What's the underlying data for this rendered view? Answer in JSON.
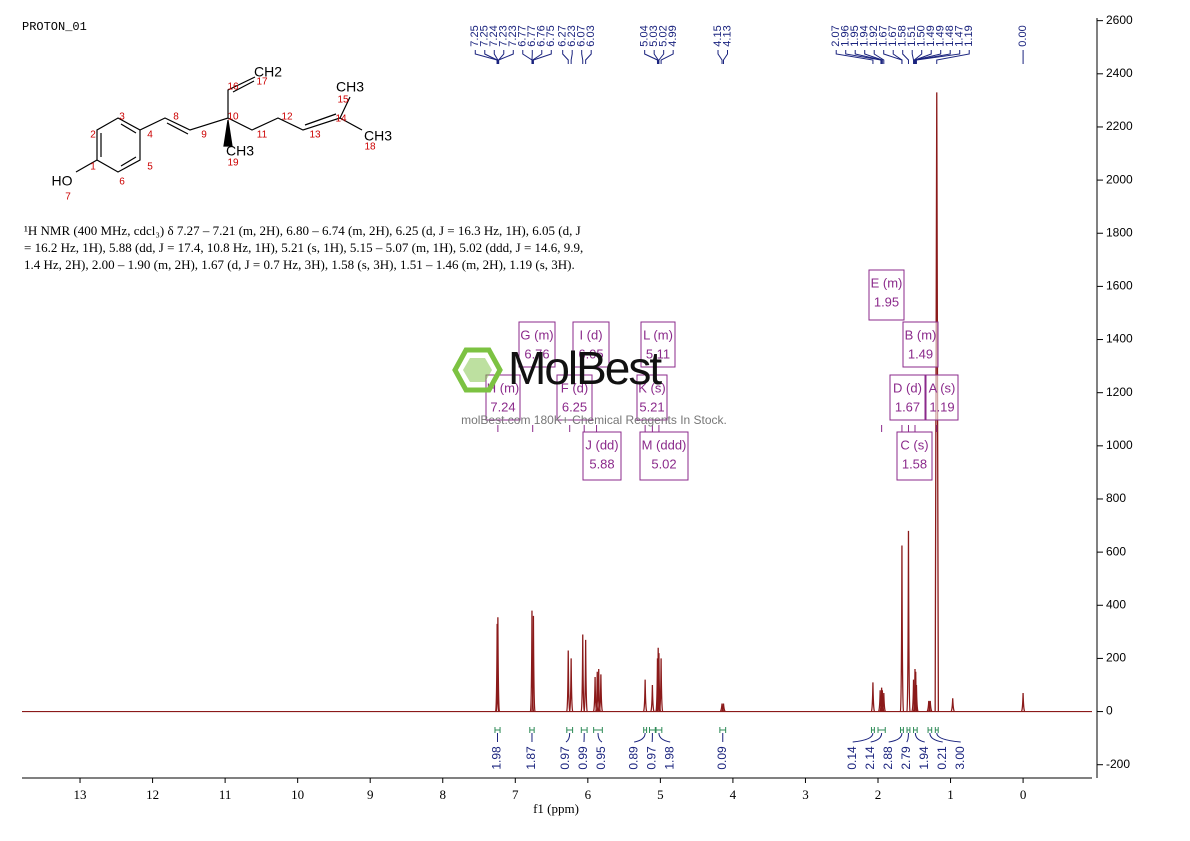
{
  "chart_data": {
    "type": "nmr",
    "title": "PROTON_01",
    "x_label": "f1 (ppm)",
    "xlim": [
      13.8,
      -0.95
    ],
    "xticks": [
      13,
      12,
      11,
      10,
      9,
      8,
      7,
      6,
      5,
      4,
      3,
      2,
      1,
      0
    ],
    "ylim": [
      -250,
      2610
    ],
    "yticks": [
      -200,
      0,
      200,
      400,
      600,
      800,
      1000,
      1200,
      1400,
      1600,
      1800,
      2000,
      2200,
      2400,
      2600
    ],
    "series": [
      {
        "color": "#8b1a1a",
        "x": [
          7.25,
          7.24,
          6.77,
          6.75,
          6.27,
          6.23,
          6.07,
          6.03,
          5.9,
          5.87,
          5.85,
          5.82,
          5.21,
          5.11,
          5.04,
          5.03,
          5.02,
          4.99,
          4.15,
          4.13,
          2.07,
          1.97,
          1.95,
          1.94,
          1.92,
          1.67,
          1.58,
          1.51,
          1.49,
          1.48,
          1.47,
          1.3,
          1.28,
          1.19,
          0.97,
          0.0
        ],
        "values": [
          330,
          355,
          380,
          360,
          230,
          200,
          290,
          270,
          130,
          150,
          160,
          140,
          120,
          100,
          200,
          240,
          220,
          200,
          30,
          30,
          110,
          80,
          90,
          80,
          70,
          625,
          680,
          120,
          160,
          150,
          100,
          40,
          40,
          2330,
          50,
          70
        ]
      }
    ],
    "peak_labels": [
      7.25,
      7.25,
      7.24,
      7.23,
      7.23,
      6.77,
      6.77,
      6.76,
      6.75,
      6.27,
      6.23,
      6.07,
      6.03,
      5.04,
      5.03,
      5.02,
      4.99,
      4.15,
      4.13,
      2.07,
      1.96,
      1.95,
      1.94,
      1.92,
      1.67,
      1.67,
      1.58,
      1.51,
      {
        "value": 1.5,
        "label": "1.50"
      },
      1.49,
      1.49,
      1.48,
      1.47,
      1.19,
      {
        "value": 0,
        "label": "0.00"
      }
    ],
    "multiplets": [
      {
        "name": "A (s)",
        "shift": 1.19
      },
      {
        "name": "B (m)",
        "shift": 1.49
      },
      {
        "name": "C (s)",
        "shift": 1.58
      },
      {
        "name": "D (d)",
        "shift": 1.67
      },
      {
        "name": "E (m)",
        "shift": 1.95
      },
      {
        "name": "F (d)",
        "shift": 6.25
      },
      {
        "name": "G (m)",
        "shift": 6.76
      },
      {
        "name": "H (m)",
        "shift": 7.24
      },
      {
        "name": "I (d)",
        "shift": 6.05
      },
      {
        "name": "J (dd)",
        "shift": 5.88
      },
      {
        "name": "K (s)",
        "shift": 5.21
      },
      {
        "name": "L (m)",
        "shift": 5.11
      },
      {
        "name": "M (ddd)",
        "shift": 5.02
      }
    ],
    "integrals": [
      {
        "from": 7.28,
        "to": 7.21,
        "value": 1.98
      },
      {
        "from": 6.8,
        "to": 6.74,
        "value": 1.87
      },
      {
        "from": 6.29,
        "to": 6.21,
        "value": 0.97
      },
      {
        "from": 6.09,
        "to": 6.01,
        "value": 0.99
      },
      {
        "from": 5.92,
        "to": 5.8,
        "value": 0.95
      },
      {
        "from": 5.23,
        "to": 5.19,
        "value": 0.89
      },
      {
        "from": 5.15,
        "to": 5.07,
        "value": 0.97
      },
      {
        "from": 5.06,
        "to": 4.98,
        "value": 1.98
      },
      {
        "from": 4.18,
        "to": 4.1,
        "value": 0.09
      },
      {
        "from": 2.09,
        "to": 2.05,
        "value": 0.14
      },
      {
        "from": 2.0,
        "to": 1.9,
        "value": 2.14
      },
      {
        "from": 1.69,
        "to": 1.65,
        "value": 2.88
      },
      {
        "from": 1.6,
        "to": 1.56,
        "value": 2.79
      },
      {
        "from": 1.51,
        "to": 1.46,
        "value": 1.94
      },
      {
        "from": 1.31,
        "to": 1.26,
        "value": 0.21
      },
      {
        "from": 1.21,
        "to": 1.17,
        "value": {
          "value": 3,
          "label": "3.00"
        }
      }
    ],
    "description": "¹H NMR (400 MHz, cdcl₃) δ 7.27 – 7.21 (m, 2H), 6.80 – 6.74 (m, 2H), 6.25 (d, J = 16.3 Hz, 1H), 6.05 (d, J = 16.2 Hz, 1H), 5.88 (dd, J = 17.4, 10.8 Hz, 1H), 5.21 (s, 1H), 5.15 – 5.07 (m, 1H), 5.02 (ddd, J = 14.6, 9.9, 1.4 Hz, 2H), 2.00 – 1.90 (m, 2H), 1.67 (d, J = 0.7 Hz, 3H), 1.58 (s, 3H), 1.51 – 1.46 (m, 2H), 1.19 (s, 3H).",
    "structure": {
      "groups": [
        "HO",
        "CH2",
        "CH3",
        "CH3",
        "CH3"
      ],
      "atom_numbers": [
        1,
        2,
        3,
        4,
        5,
        6,
        7,
        8,
        9,
        10,
        11,
        12,
        13,
        14,
        15,
        16,
        17,
        18,
        19
      ]
    },
    "watermark": {
      "logo": "MolBest",
      "tagline": "molBest.com 180K+ Chemical Reagents In Stock."
    }
  }
}
